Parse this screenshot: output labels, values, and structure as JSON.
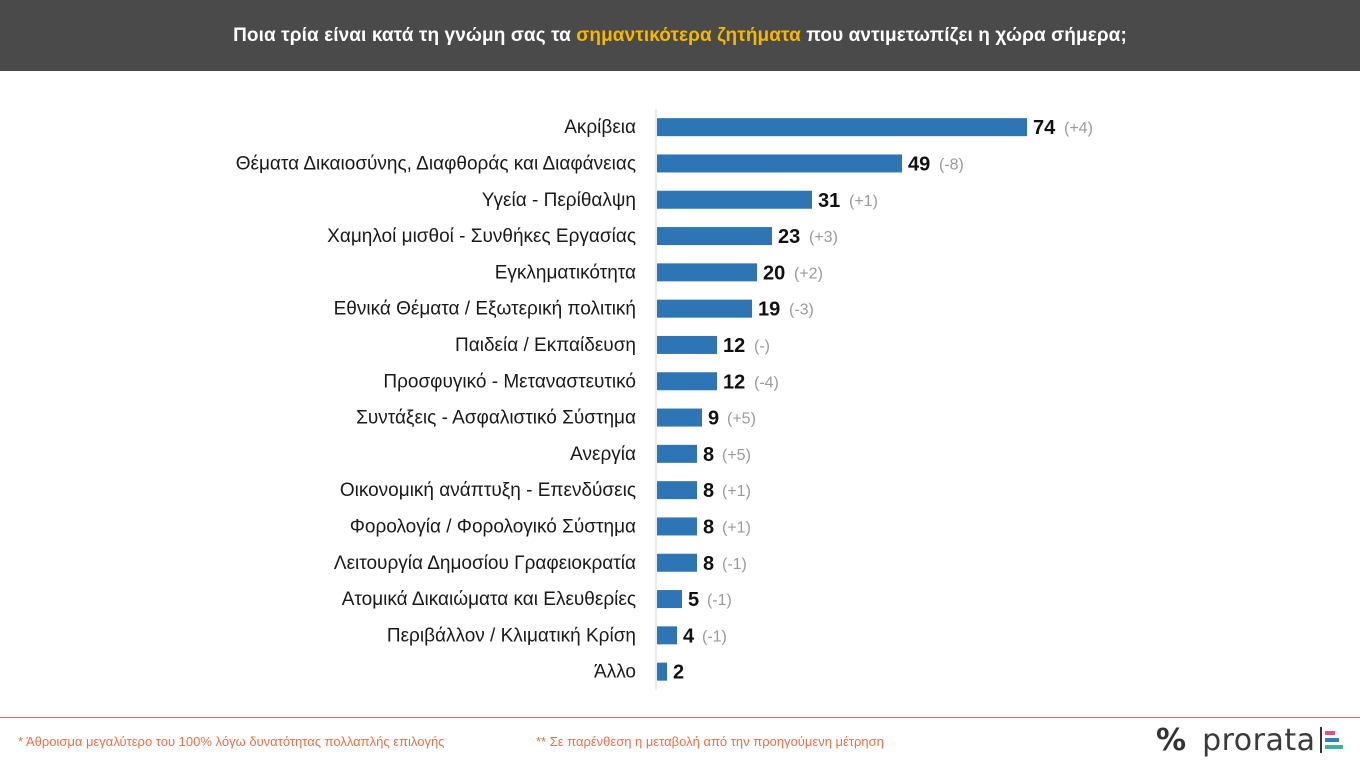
{
  "header": {
    "title_pre": "Ποια τρία είναι κατά τη γνώμη σας τα ",
    "title_highlight": "σημαντικότερα ζητήματα",
    "title_post": " που αντιμετωπίζει η χώρα σήμερα;",
    "highlight_color": "#f5b800"
  },
  "chart_data": {
    "type": "bar",
    "orientation": "horizontal",
    "title": "Ποια τρία είναι κατά τη γνώμη σας τα σημαντικότερα ζητήματα που αντιμετωπίζει η χώρα σήμερα;",
    "bar_color": "#2e75b6",
    "xlim": [
      0,
      100
    ],
    "categories": [
      "Ακρίβεια",
      "Θέματα Δικαιοσύνης, Διαφθοράς και Διαφάνειας",
      "Υγεία - Περίθαλψη",
      "Χαμηλοί μισθοί - Συνθήκες Εργασίας",
      "Εγκληματικότητα",
      "Εθνικά Θέματα / Εξωτερική πολιτική",
      "Παιδεία / Εκπαίδευση",
      "Προσφυγικό - Μεταναστευτικό",
      "Συντάξεις - Ασφαλιστικό Σύστημα",
      "Ανεργία",
      "Οικονομική ανάπτυξη - Επενδύσεις",
      "Φορολογία / Φορολογικό Σύστημα",
      "Λειτουργία Δημοσίου  Γραφειοκρατία",
      "Ατομικά Δικαιώματα και Ελευθερίες",
      "Περιβάλλον / Κλιματική Κρίση",
      "Άλλο"
    ],
    "values": [
      74,
      49,
      31,
      23,
      20,
      19,
      12,
      12,
      9,
      8,
      8,
      8,
      8,
      5,
      4,
      2
    ],
    "changes": [
      "(+4)",
      "(-8)",
      "(+1)",
      "(+3)",
      "(+2)",
      "(-3)",
      "(-)",
      "(-4)",
      "(+5)",
      "(+5)",
      "(+1)",
      "(+1)",
      "(-1)",
      "(-1)",
      "(-1)",
      ""
    ]
  },
  "footer": {
    "note1": "* Άθροισμα μεγαλύτερο του 100% λόγω δυνατότητας πολλαπλής επιλογής",
    "note2": "** Σε παρένθεση η μεταβολή από την προηγούμενη μέτρηση",
    "logo_symbol": "%",
    "logo_text": "prorata"
  }
}
